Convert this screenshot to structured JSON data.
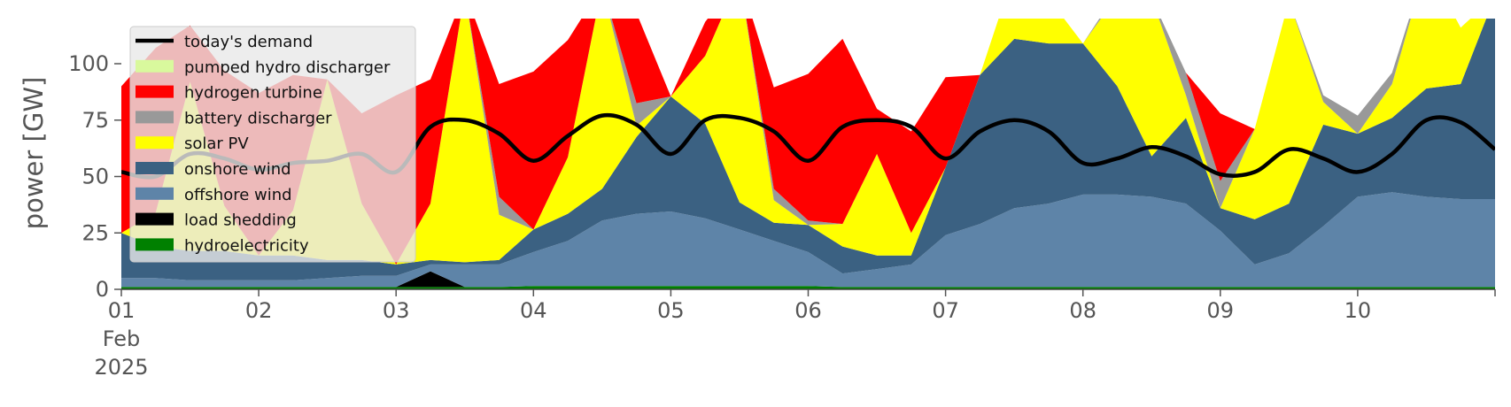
{
  "chart_data": {
    "type": "area",
    "ylabel": "power [GW]",
    "ylim": [
      0,
      120
    ],
    "xlim": [
      1,
      11
    ],
    "y_ticks": [
      0,
      25,
      50,
      75,
      100
    ],
    "x_ticks": [
      {
        "x": 1,
        "label": "01",
        "sublabel": [
          "Feb",
          "2025"
        ]
      },
      {
        "x": 2,
        "label": "02"
      },
      {
        "x": 3,
        "label": "03"
      },
      {
        "x": 4,
        "label": "04"
      },
      {
        "x": 5,
        "label": "05"
      },
      {
        "x": 6,
        "label": "06"
      },
      {
        "x": 7,
        "label": "07"
      },
      {
        "x": 8,
        "label": "08"
      },
      {
        "x": 9,
        "label": "09"
      },
      {
        "x": 10,
        "label": "10"
      }
    ],
    "grid": false,
    "legend_position": "top-left",
    "legend": [
      {
        "label": "today's demand",
        "color": "#000000",
        "kind": "line"
      },
      {
        "label": "pumped hydro discharger",
        "color": "#d9f99d",
        "kind": "patch"
      },
      {
        "label": "hydrogen turbine",
        "color": "#ff0000",
        "kind": "patch"
      },
      {
        "label": "battery discharger",
        "color": "#999999",
        "kind": "patch"
      },
      {
        "label": "solar PV",
        "color": "#ffff00",
        "kind": "patch"
      },
      {
        "label": "onshore wind",
        "color": "#3b6182",
        "kind": "patch"
      },
      {
        "label": "offshore wind",
        "color": "#5e84a8",
        "kind": "patch"
      },
      {
        "label": "load shedding",
        "color": "#000000",
        "kind": "patch"
      },
      {
        "label": "hydroelectricity",
        "color": "#008000",
        "kind": "patch"
      }
    ],
    "x": [
      1.0,
      1.25,
      1.5,
      1.75,
      2.0,
      2.25,
      2.5,
      2.75,
      3.0,
      3.25,
      3.5,
      3.75,
      4.0,
      4.25,
      4.5,
      4.75,
      5.0,
      5.25,
      5.5,
      5.75,
      6.0,
      6.25,
      6.5,
      6.75,
      7.0,
      7.25,
      7.5,
      7.75,
      8.0,
      8.25,
      8.5,
      8.75,
      9.0,
      9.25,
      9.5,
      9.75,
      10.0,
      10.25,
      10.5,
      10.75,
      11.0
    ],
    "stack_order": [
      "hydroelectricity",
      "load shedding",
      "offshore wind",
      "onshore wind",
      "solar PV",
      "battery discharger",
      "hydrogen turbine",
      "pumped hydro discharger"
    ],
    "series": [
      {
        "name": "hydroelectricity",
        "color": "#008000",
        "values": [
          1,
          1,
          1,
          1,
          1,
          1,
          1,
          1,
          1,
          1,
          1,
          1,
          1.5,
          1.5,
          1.5,
          1.5,
          1.5,
          1.5,
          1.5,
          1.5,
          1.5,
          1,
          1,
          1,
          1,
          1,
          1,
          1,
          1,
          1,
          1,
          1,
          1,
          1,
          1,
          1,
          1,
          1,
          1,
          1,
          1
        ]
      },
      {
        "name": "load shedding",
        "color": "#000000",
        "values": [
          0,
          0,
          0,
          0,
          0,
          0,
          0,
          0,
          0,
          7,
          0,
          0,
          0,
          0,
          0,
          0,
          0,
          0,
          0,
          0,
          0,
          0,
          0,
          0,
          0,
          0,
          0,
          0,
          0,
          0,
          0,
          0,
          0,
          0,
          0,
          0,
          0,
          0,
          0,
          0,
          0
        ]
      },
      {
        "name": "offshore wind",
        "color": "#5e84a8",
        "values": [
          4,
          4,
          3,
          3,
          3,
          3,
          4,
          5,
          5,
          3,
          10,
          10,
          15,
          20,
          29,
          32,
          33,
          30,
          25,
          20,
          15,
          6,
          8,
          10,
          23,
          28,
          35,
          37,
          41,
          41,
          40,
          37,
          25,
          10,
          15,
          27,
          40,
          42,
          40,
          39,
          39
        ]
      },
      {
        "name": "onshore wind",
        "color": "#3b6182",
        "values": [
          20,
          14,
          13,
          13,
          11,
          11,
          8,
          7,
          5,
          2,
          1,
          2,
          10,
          12,
          14,
          34,
          51,
          42,
          12,
          8,
          12,
          12,
          6,
          4,
          30,
          66,
          75,
          71,
          67,
          48,
          18,
          38,
          10,
          20,
          22,
          45,
          28,
          33,
          48,
          51,
          90
        ]
      },
      {
        "name": "solar PV",
        "color": "#ffff00",
        "values": [
          0,
          15,
          75,
          20,
          0,
          20,
          80,
          25,
          0,
          25,
          120,
          20,
          0,
          25,
          90,
          5,
          0,
          30,
          100,
          10,
          0,
          10,
          45,
          10,
          0,
          0,
          30,
          20,
          0,
          40,
          70,
          10,
          0,
          40,
          90,
          10,
          0,
          15,
          80,
          25,
          0
        ]
      },
      {
        "name": "battery discharger",
        "color": "#999999",
        "values": [
          0,
          0,
          0,
          0,
          0,
          0,
          0,
          0,
          0,
          0,
          0,
          8,
          0,
          0,
          0,
          10,
          0,
          0,
          0,
          5,
          2,
          0,
          0,
          0,
          0,
          0,
          0,
          0,
          0,
          2,
          0,
          10,
          12,
          0,
          0,
          3,
          8,
          5,
          0,
          0,
          0
        ]
      },
      {
        "name": "hydrogen turbine",
        "color": "#ff0000",
        "values": [
          65,
          73,
          25,
          60,
          72,
          60,
          0,
          40,
          75,
          55,
          0,
          50,
          70,
          52,
          0,
          40,
          0,
          15,
          0,
          45,
          65,
          82,
          20,
          45,
          40,
          0,
          0,
          0,
          0,
          0,
          0,
          0,
          30,
          0,
          0,
          0,
          0,
          0,
          0,
          0,
          0
        ]
      },
      {
        "name": "pumped hydro discharger",
        "color": "#d9f99d",
        "values": [
          0,
          0,
          0,
          0,
          0,
          0,
          0,
          0,
          0,
          0,
          0,
          0,
          0,
          0,
          0,
          0,
          0,
          0,
          0,
          0,
          0,
          0,
          0,
          0,
          0,
          0,
          0,
          0,
          0,
          0,
          0,
          0,
          0,
          0,
          0,
          0,
          0,
          0,
          0,
          0,
          0
        ]
      },
      {
        "name": "today's demand",
        "color": "#000000",
        "kind": "line",
        "values": [
          52,
          50,
          60,
          58,
          53,
          56,
          57,
          60,
          52,
          72,
          75,
          69,
          57,
          68,
          77,
          73,
          60,
          75,
          76,
          70,
          57,
          72,
          75,
          72,
          58,
          70,
          75,
          70,
          56,
          58,
          63,
          59,
          51,
          52,
          62,
          58,
          52,
          60,
          75,
          74,
          62
        ]
      }
    ]
  }
}
